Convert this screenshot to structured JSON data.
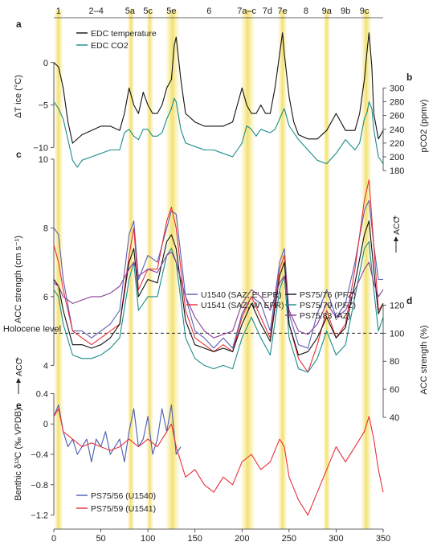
{
  "chart_data": [
    {
      "panel": "a",
      "type": "line",
      "ylabel": "ΔT ice (°C)",
      "ylim": [
        -13,
        5
      ],
      "yticks": [
        0,
        -5,
        -10
      ],
      "series": [
        {
          "name": "EDC temperature",
          "color": "#111111",
          "x": [
            0,
            5,
            10,
            15,
            20,
            30,
            40,
            50,
            60,
            70,
            75,
            80,
            85,
            90,
            95,
            100,
            105,
            110,
            115,
            120,
            125,
            128,
            130,
            135,
            140,
            150,
            160,
            170,
            180,
            190,
            195,
            200,
            205,
            210,
            215,
            220,
            225,
            230,
            235,
            240,
            243,
            245,
            250,
            255,
            260,
            270,
            280,
            290,
            300,
            310,
            320,
            325,
            330,
            333,
            335,
            338,
            340,
            345,
            350
          ],
          "y": [
            0,
            -0.5,
            -3,
            -7,
            -9.5,
            -8.5,
            -8,
            -7.5,
            -7.5,
            -8,
            -6,
            -3,
            -5,
            -6,
            -3.5,
            -5,
            -6,
            -6,
            -5,
            -3,
            -2,
            2,
            3,
            -2,
            -6,
            -7,
            -7.5,
            -7.5,
            -7.5,
            -7,
            -5,
            -3,
            -5,
            -6,
            -6,
            -5,
            -6,
            -6,
            -3,
            1,
            3.5,
            1,
            -4,
            -7,
            -8.5,
            -9,
            -9,
            -8,
            -6,
            -8,
            -8,
            -6,
            -2,
            1.5,
            3.5,
            -0.5,
            -6,
            -9,
            -8
          ]
        },
        {
          "name": "EDC CO2",
          "color": "#1a8c8a",
          "x": [
            0,
            5,
            10,
            15,
            20,
            25,
            30,
            40,
            50,
            60,
            70,
            75,
            80,
            85,
            90,
            95,
            100,
            105,
            110,
            115,
            120,
            125,
            128,
            130,
            135,
            140,
            150,
            160,
            170,
            180,
            190,
            200,
            205,
            210,
            215,
            220,
            230,
            235,
            240,
            243,
            245,
            250,
            260,
            270,
            280,
            290,
            300,
            310,
            320,
            325,
            330,
            333,
            335,
            338,
            340,
            345,
            350
          ],
          "y": [
            280,
            270,
            255,
            225,
            195,
            185,
            195,
            200,
            205,
            210,
            210,
            235,
            240,
            230,
            225,
            240,
            240,
            230,
            230,
            235,
            255,
            270,
            285,
            280,
            240,
            220,
            215,
            210,
            210,
            205,
            200,
            220,
            245,
            240,
            230,
            240,
            235,
            240,
            255,
            265,
            270,
            245,
            225,
            210,
            195,
            190,
            205,
            225,
            210,
            220,
            255,
            265,
            280,
            270,
            240,
            200,
            190
          ]
        }
      ],
      "y2label": "pCO2 (ppmv)",
      "y2lim": [
        165,
        325
      ],
      "y2ticks": [
        180,
        200,
        220,
        240,
        260,
        280,
        300
      ]
    },
    {
      "panel": "c",
      "type": "line",
      "ylabel": "ACC strength (cm s⁻¹)",
      "ylim": [
        3.4,
        9.6
      ],
      "yticks": [
        4,
        6,
        8,
        10
      ],
      "series": [
        {
          "name": "U1540 (SAZ; E' EPR)",
          "color": "#5b5fb8",
          "x": [
            0,
            5,
            10,
            20,
            30,
            40,
            50,
            60,
            70,
            80,
            85,
            90,
            100,
            110,
            120,
            125,
            130,
            140,
            150,
            160,
            170,
            180,
            190,
            200,
            210,
            220,
            230,
            240,
            245,
            250,
            260,
            270,
            280,
            290,
            300,
            310,
            320,
            330,
            335,
            340,
            345,
            350
          ],
          "y": [
            8,
            7.8,
            6.5,
            5,
            5,
            4.8,
            5,
            5.2,
            5.6,
            7.8,
            8.2,
            6.5,
            7.2,
            7,
            8,
            8.5,
            8.4,
            6,
            5,
            4.8,
            4.5,
            4.8,
            4.5,
            5.5,
            6,
            5.8,
            5,
            7,
            7.4,
            5.5,
            4.6,
            4.5,
            5.5,
            6.2,
            5.4,
            5.8,
            7,
            8.5,
            8.8,
            7.5,
            6.5,
            6.5
          ]
        },
        {
          "name": "U1541 (SAZ; W' EPR)",
          "color": "#e8303a",
          "x": [
            0,
            5,
            10,
            20,
            30,
            40,
            50,
            60,
            70,
            80,
            85,
            90,
            100,
            110,
            120,
            125,
            130,
            140,
            150,
            160,
            170,
            180,
            190,
            200,
            210,
            220,
            230,
            240,
            245,
            250,
            260,
            270,
            280,
            290,
            300,
            310,
            320,
            330,
            335,
            340,
            345,
            350
          ],
          "y": [
            7.5,
            7,
            6.2,
            5,
            4.8,
            4.6,
            4.8,
            5,
            5.2,
            7.2,
            8,
            6.2,
            6.8,
            6.8,
            8.2,
            8.6,
            8,
            5.6,
            4.8,
            4.6,
            4.4,
            4.6,
            4.4,
            5.4,
            6,
            5.4,
            4.8,
            6.8,
            7.2,
            5.2,
            4.2,
            3.8,
            4.6,
            5.6,
            4.8,
            5.2,
            6.8,
            8.8,
            9.4,
            7.5,
            5.6,
            5.8
          ]
        },
        {
          "name": "PS75/76 (PFZ)",
          "color": "#111111",
          "x": [
            0,
            5,
            10,
            20,
            30,
            40,
            50,
            60,
            70,
            80,
            85,
            90,
            100,
            110,
            120,
            125,
            130,
            140,
            150,
            160,
            170,
            180,
            190,
            200,
            210,
            220,
            230,
            240,
            245,
            250,
            260,
            270,
            280,
            290,
            300,
            310,
            320,
            330,
            335,
            340,
            345,
            350
          ],
          "y": [
            6.5,
            6.3,
            5.6,
            4.6,
            4.6,
            4.5,
            4.6,
            4.8,
            5.2,
            7,
            7.4,
            6,
            6.5,
            6.4,
            7.6,
            7.8,
            7.4,
            5.3,
            4.6,
            4.5,
            4.4,
            4.5,
            4.4,
            5.2,
            5.8,
            5.2,
            4.7,
            6.6,
            7,
            5.2,
            4.3,
            4.4,
            4.8,
            5.4,
            4.8,
            5.1,
            6.4,
            7.8,
            8.2,
            6.8,
            5.5,
            5.8
          ]
        },
        {
          "name": "PS75/79 (PFZ)",
          "color": "#1a8c8a",
          "x": [
            0,
            5,
            10,
            20,
            30,
            40,
            50,
            60,
            70,
            80,
            85,
            90,
            100,
            110,
            120,
            125,
            130,
            140,
            150,
            160,
            170,
            180,
            190,
            200,
            210,
            220,
            230,
            240,
            245,
            250,
            260,
            270,
            280,
            290,
            300,
            310,
            320,
            330,
            335,
            340,
            345,
            350
          ],
          "y": [
            6.2,
            6,
            5.2,
            4.3,
            4.2,
            4.2,
            4.3,
            4.5,
            4.8,
            6.5,
            7,
            5.6,
            6,
            6,
            7.2,
            7.4,
            7,
            4.8,
            4.2,
            4,
            3.9,
            4,
            3.9,
            4.8,
            5.4,
            4.8,
            4.3,
            6.2,
            6.6,
            4.8,
            3.9,
            3.8,
            4.2,
            5,
            4.3,
            4.6,
            6,
            7.4,
            7.6,
            6.2,
            5,
            5.4
          ]
        },
        {
          "name": "PS75/83 (AZ)",
          "color": "#8a3e96",
          "x": [
            0,
            5,
            10,
            20,
            30,
            40,
            50,
            60,
            70,
            80,
            85,
            90,
            100,
            110,
            120,
            125,
            130,
            140,
            150,
            160,
            170,
            180,
            190,
            200,
            210,
            220,
            230,
            240,
            245,
            250,
            260,
            270,
            280,
            290,
            300,
            310,
            320,
            330,
            335,
            340,
            345,
            350
          ],
          "y": [
            6.4,
            6.3,
            6,
            5.8,
            5.9,
            6,
            6,
            6.1,
            6.3,
            6.8,
            7,
            6.6,
            6.8,
            6.7,
            7.2,
            7.3,
            7,
            6,
            5.4,
            5,
            4.8,
            4.9,
            5,
            5.8,
            6.2,
            6,
            5.6,
            6.4,
            6.6,
            5.6,
            5,
            4.9,
            5.2,
            5.8,
            5.4,
            5.6,
            6.2,
            6.8,
            7,
            6.4,
            6,
            6.2
          ]
        }
      ],
      "y2label": "ACC strength (%)",
      "y2lim": [
        28,
        134
      ],
      "y2ticks": [
        40,
        60,
        80,
        100,
        120
      ],
      "reference_line": {
        "label": "Holocene level",
        "y2": 100
      }
    },
    {
      "panel": "e",
      "type": "line",
      "ylabel": "Benthic δ¹³C (‰ VPDB)",
      "ylim": [
        -1.3,
        0.5
      ],
      "yticks": [
        0.4,
        0,
        -0.4,
        -0.8,
        -1.2
      ],
      "series": [
        {
          "name": "PS75/56 (U1540)",
          "color": "#4a5cb0",
          "x": [
            0,
            5,
            10,
            15,
            20,
            25,
            30,
            35,
            40,
            45,
            50,
            55,
            60,
            65,
            70,
            75,
            80,
            85,
            90,
            95,
            100,
            105,
            110,
            115,
            120,
            125,
            130,
            135
          ],
          "y": [
            0.1,
            0.25,
            -0.1,
            -0.3,
            -0.2,
            -0.4,
            -0.3,
            -0.2,
            -0.5,
            -0.2,
            -0.3,
            -0.1,
            -0.4,
            -0.3,
            -0.2,
            -0.5,
            -0.1,
            0.2,
            -0.3,
            -0.2,
            0.1,
            -0.4,
            -0.2,
            0.2,
            -0.1,
            0.25,
            -0.4,
            -0.3
          ]
        },
        {
          "name": "PS75/59 (U1541)",
          "color": "#e8303a",
          "x": [
            0,
            5,
            10,
            20,
            30,
            40,
            50,
            60,
            70,
            80,
            90,
            100,
            110,
            120,
            125,
            130,
            140,
            150,
            160,
            170,
            180,
            190,
            200,
            210,
            220,
            230,
            240,
            245,
            250,
            260,
            270,
            280,
            290,
            300,
            310,
            320,
            330,
            335,
            340,
            345,
            350
          ],
          "y": [
            0.1,
            0.2,
            -0.1,
            -0.2,
            -0.3,
            -0.25,
            -0.3,
            -0.35,
            -0.3,
            -0.2,
            -0.3,
            -0.2,
            -0.3,
            -0.1,
            0.0,
            -0.3,
            -0.7,
            -0.6,
            -0.8,
            -0.9,
            -0.7,
            -0.8,
            -0.5,
            -0.4,
            -0.6,
            -0.5,
            -0.2,
            -0.3,
            -0.7,
            -1.0,
            -1.2,
            -0.9,
            -0.6,
            -0.3,
            -0.5,
            -0.3,
            -0.1,
            0.1,
            -0.2,
            -0.6,
            -0.9
          ]
        }
      ]
    }
  ],
  "x_axis": {
    "xlim": [
      0,
      350
    ],
    "ticks": [
      0,
      50,
      100,
      150,
      200,
      250,
      300,
      350
    ]
  },
  "panel_labels": [
    "a",
    "b",
    "c",
    "d",
    "e"
  ],
  "mis": [
    {
      "label": "1",
      "at": 5
    },
    {
      "label": "2–4",
      "at": 45
    },
    {
      "label": "5a",
      "at": 81
    },
    {
      "label": "5c",
      "at": 100
    },
    {
      "label": "5e",
      "at": 125
    },
    {
      "label": "6",
      "at": 165
    },
    {
      "label": "7a–c",
      "at": 205
    },
    {
      "label": "7d",
      "at": 227
    },
    {
      "label": "7e",
      "at": 243
    },
    {
      "label": "8",
      "at": 268
    },
    {
      "label": "9a",
      "at": 290
    },
    {
      "label": "9b",
      "at": 310
    },
    {
      "label": "9c",
      "at": 330
    }
  ],
  "mis_bands": [
    [
      0,
      10
    ],
    [
      78,
      86
    ],
    [
      98,
      106
    ],
    [
      118,
      134
    ],
    [
      198,
      214
    ],
    [
      238,
      248
    ],
    [
      286,
      294
    ],
    [
      326,
      338
    ]
  ],
  "arrow_labels": [
    "ACC",
    "ACC"
  ]
}
